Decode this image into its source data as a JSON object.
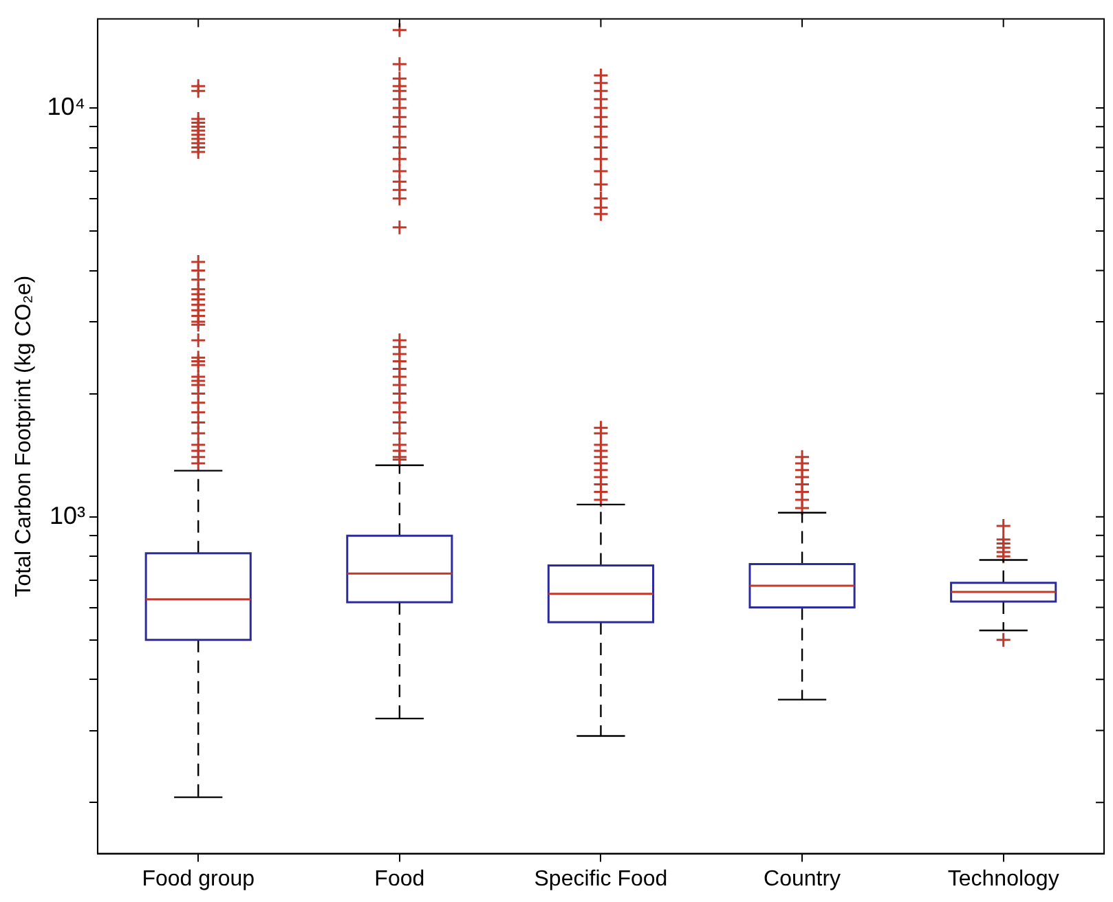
{
  "chart_data": {
    "type": "box",
    "ylabel": "Total Carbon Footprint (kg CO₂e)",
    "categories": [
      "Food group",
      "Food",
      "Specific Food",
      "Country",
      "Technology"
    ],
    "boxes": [
      {
        "low": 206,
        "q1": 500,
        "median": 628,
        "q3": 814,
        "high": 1296,
        "outliers": [
          11300,
          11000,
          9400,
          9200,
          9000,
          8800,
          8600,
          8400,
          8200,
          8000,
          7800,
          4200,
          4000,
          3800,
          3600,
          3500,
          3400,
          3300,
          3200,
          3100,
          3000,
          2950,
          2700,
          2450,
          2400,
          2350,
          2200,
          2150,
          2100,
          2000,
          1900,
          1800,
          1700,
          1600,
          1500,
          1450,
          1400,
          1350
        ]
      },
      {
        "low": 321,
        "q1": 618,
        "median": 726,
        "q3": 899,
        "high": 1336,
        "outliers": [
          15500,
          12800,
          11800,
          11300,
          11000,
          10500,
          10000,
          9500,
          9000,
          8500,
          8000,
          7500,
          7000,
          6600,
          6300,
          6000,
          5100,
          2700,
          2600,
          2500,
          2400,
          2300,
          2200,
          2100,
          2000,
          1900,
          1800,
          1700,
          1600,
          1500,
          1450,
          1400,
          1380
        ]
      },
      {
        "low": 291,
        "q1": 552,
        "median": 648,
        "q3": 760,
        "high": 1071,
        "outliers": [
          12000,
          11500,
          11000,
          10500,
          10000,
          9500,
          9000,
          8500,
          8000,
          7500,
          7000,
          6500,
          6000,
          5700,
          5500,
          1650,
          1600,
          1500,
          1450,
          1400,
          1350,
          1300,
          1250,
          1200,
          1150,
          1100
        ]
      },
      {
        "low": 357,
        "q1": 600,
        "median": 678,
        "q3": 766,
        "high": 1023,
        "outliers": [
          1400,
          1350,
          1300,
          1250,
          1200,
          1150,
          1100,
          1050
        ]
      },
      {
        "low": 527,
        "q1": 620,
        "median": 655,
        "q3": 689,
        "high": 784,
        "outliers": [
          950,
          880,
          860,
          840,
          820,
          800,
          500
        ]
      }
    ],
    "color": "#2b2b9e",
    "marker": "cross",
    "log": "y",
    "grid": false,
    "legend": false,
    "ylim": [
      150,
      16500
    ],
    "yticks": [
      {
        "value": 200,
        "label": null
      },
      {
        "value": 300,
        "label": null
      },
      {
        "value": 400,
        "label": null
      },
      {
        "value": 500,
        "label": null
      },
      {
        "value": 600,
        "label": null
      },
      {
        "value": 700,
        "label": null
      },
      {
        "value": 800,
        "label": null
      },
      {
        "value": 900,
        "label": null
      },
      {
        "value": 1000,
        "label": "10³"
      },
      {
        "value": 2000,
        "label": null
      },
      {
        "value": 3000,
        "label": null
      },
      {
        "value": 4000,
        "label": null
      },
      {
        "value": 5000,
        "label": null
      },
      {
        "value": 6000,
        "label": null
      },
      {
        "value": 7000,
        "label": null
      },
      {
        "value": 8000,
        "label": null
      },
      {
        "value": 9000,
        "label": null
      },
      {
        "value": 10000,
        "label": "10⁴"
      }
    ]
  }
}
